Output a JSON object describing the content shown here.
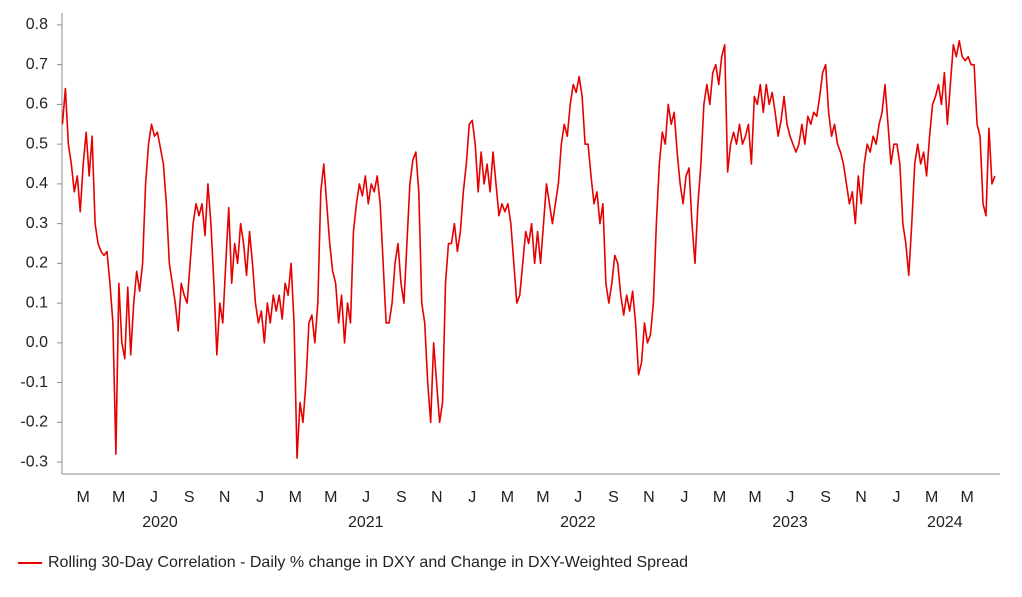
{
  "chart_data": {
    "type": "line",
    "x": [
      2020.11,
      2020.124,
      2020.138,
      2020.152,
      2020.166,
      2020.18,
      2020.194,
      2020.208,
      2020.222,
      2020.236,
      2020.25,
      2020.264,
      2020.278,
      2020.292,
      2020.306,
      2020.32,
      2020.334,
      2020.348,
      2020.362,
      2020.376,
      2020.39,
      2020.404,
      2020.418,
      2020.432,
      2020.446,
      2020.46,
      2020.474,
      2020.488,
      2020.502,
      2020.516,
      2020.53,
      2020.544,
      2020.558,
      2020.572,
      2020.586,
      2020.6,
      2020.614,
      2020.628,
      2020.642,
      2020.656,
      2020.67,
      2020.684,
      2020.698,
      2020.712,
      2020.726,
      2020.74,
      2020.754,
      2020.768,
      2020.782,
      2020.796,
      2020.81,
      2020.824,
      2020.838,
      2020.852,
      2020.866,
      2020.88,
      2020.894,
      2020.908,
      2020.922,
      2020.936,
      2020.95,
      2020.964,
      2020.978,
      2020.992,
      2021.006,
      2021.02,
      2021.034,
      2021.048,
      2021.062,
      2021.076,
      2021.09,
      2021.104,
      2021.118,
      2021.132,
      2021.146,
      2021.16,
      2021.174,
      2021.188,
      2021.202,
      2021.216,
      2021.23,
      2021.244,
      2021.258,
      2021.272,
      2021.286,
      2021.3,
      2021.314,
      2021.328,
      2021.342,
      2021.356,
      2021.37,
      2021.384,
      2021.398,
      2021.412,
      2021.426,
      2021.44,
      2021.454,
      2021.468,
      2021.482,
      2021.496,
      2021.51,
      2021.524,
      2021.538,
      2021.552,
      2021.566,
      2021.58,
      2021.594,
      2021.608,
      2021.622,
      2021.636,
      2021.65,
      2021.664,
      2021.678,
      2021.692,
      2021.706,
      2021.72,
      2021.734,
      2021.748,
      2021.762,
      2021.776,
      2021.79,
      2021.804,
      2021.818,
      2021.832,
      2021.846,
      2021.86,
      2021.874,
      2021.888,
      2021.902,
      2021.916,
      2021.93,
      2021.944,
      2021.958,
      2021.972,
      2021.986,
      2022,
      2022.014,
      2022.028,
      2022.042,
      2022.056,
      2022.07,
      2022.084,
      2022.098,
      2022.112,
      2022.126,
      2022.14,
      2022.154,
      2022.168,
      2022.182,
      2022.196,
      2022.21,
      2022.224,
      2022.238,
      2022.252,
      2022.266,
      2022.28,
      2022.294,
      2022.308,
      2022.322,
      2022.336,
      2022.35,
      2022.364,
      2022.378,
      2022.392,
      2022.406,
      2022.42,
      2022.434,
      2022.448,
      2022.462,
      2022.476,
      2022.49,
      2022.504,
      2022.518,
      2022.532,
      2022.546,
      2022.56,
      2022.574,
      2022.588,
      2022.602,
      2022.616,
      2022.63,
      2022.644,
      2022.658,
      2022.672,
      2022.686,
      2022.7,
      2022.714,
      2022.728,
      2022.742,
      2022.756,
      2022.77,
      2022.784,
      2022.798,
      2022.812,
      2022.826,
      2022.84,
      2022.854,
      2022.868,
      2022.882,
      2022.896,
      2022.91,
      2022.924,
      2022.938,
      2022.952,
      2022.966,
      2022.98,
      2022.994,
      2023.008,
      2023.022,
      2023.036,
      2023.05,
      2023.064,
      2023.078,
      2023.092,
      2023.106,
      2023.12,
      2023.134,
      2023.148,
      2023.162,
      2023.176,
      2023.19,
      2023.204,
      2023.218,
      2023.232,
      2023.246,
      2023.26,
      2023.274,
      2023.288,
      2023.302,
      2023.316,
      2023.33,
      2023.344,
      2023.358,
      2023.372,
      2023.386,
      2023.4,
      2023.414,
      2023.428,
      2023.442,
      2023.456,
      2023.47,
      2023.484,
      2023.498,
      2023.512,
      2023.526,
      2023.54,
      2023.554,
      2023.568,
      2023.582,
      2023.596,
      2023.61,
      2023.624,
      2023.638,
      2023.652,
      2023.666,
      2023.68,
      2023.694,
      2023.708,
      2023.722,
      2023.736,
      2023.75,
      2023.764,
      2023.778,
      2023.792,
      2023.806,
      2023.82,
      2023.834,
      2023.848,
      2023.862,
      2023.876,
      2023.89,
      2023.904,
      2023.918,
      2023.932,
      2023.946,
      2023.96,
      2023.974,
      2023.988,
      2024.002,
      2024.016,
      2024.03,
      2024.044,
      2024.058,
      2024.072,
      2024.086,
      2024.1,
      2024.114,
      2024.128,
      2024.142,
      2024.156,
      2024.17,
      2024.184,
      2024.198,
      2024.212,
      2024.226,
      2024.24,
      2024.254,
      2024.268,
      2024.282,
      2024.296,
      2024.31,
      2024.324,
      2024.338,
      2024.352,
      2024.366,
      2024.38,
      2024.394,
      2024.408,
      2024.422,
      2024.436,
      2024.45,
      2024.464,
      2024.478,
      2024.492,
      2024.506
    ],
    "series": [
      {
        "name": "Rolling 30-Day Correlation - Daily % change in DXY and Change in DXY-Weighted Spread",
        "color": "#e60000",
        "values": [
          0.55,
          0.64,
          0.5,
          0.45,
          0.38,
          0.42,
          0.33,
          0.45,
          0.53,
          0.42,
          0.52,
          0.3,
          0.25,
          0.23,
          0.22,
          0.23,
          0.15,
          0.05,
          -0.28,
          0.15,
          0.0,
          -0.04,
          0.14,
          -0.03,
          0.1,
          0.18,
          0.13,
          0.2,
          0.4,
          0.5,
          0.55,
          0.52,
          0.53,
          0.49,
          0.45,
          0.35,
          0.2,
          0.15,
          0.1,
          0.03,
          0.15,
          0.12,
          0.1,
          0.2,
          0.3,
          0.35,
          0.32,
          0.35,
          0.27,
          0.4,
          0.3,
          0.15,
          -0.03,
          0.1,
          0.05,
          0.2,
          0.34,
          0.15,
          0.25,
          0.2,
          0.3,
          0.25,
          0.17,
          0.28,
          0.2,
          0.1,
          0.05,
          0.08,
          0.0,
          0.1,
          0.05,
          0.12,
          0.08,
          0.12,
          0.06,
          0.15,
          0.12,
          0.2,
          0.05,
          -0.29,
          -0.15,
          -0.2,
          -0.1,
          0.05,
          0.07,
          0.0,
          0.1,
          0.38,
          0.45,
          0.35,
          0.25,
          0.18,
          0.15,
          0.05,
          0.12,
          0.0,
          0.1,
          0.05,
          0.28,
          0.35,
          0.4,
          0.37,
          0.42,
          0.35,
          0.4,
          0.38,
          0.42,
          0.35,
          0.2,
          0.05,
          0.05,
          0.1,
          0.2,
          0.25,
          0.15,
          0.1,
          0.25,
          0.4,
          0.46,
          0.48,
          0.38,
          0.1,
          0.05,
          -0.1,
          -0.2,
          0.0,
          -0.1,
          -0.2,
          -0.15,
          0.15,
          0.25,
          0.25,
          0.3,
          0.23,
          0.28,
          0.38,
          0.45,
          0.55,
          0.56,
          0.5,
          0.38,
          0.48,
          0.4,
          0.45,
          0.38,
          0.48,
          0.4,
          0.32,
          0.35,
          0.33,
          0.35,
          0.3,
          0.2,
          0.1,
          0.12,
          0.2,
          0.28,
          0.25,
          0.3,
          0.2,
          0.28,
          0.2,
          0.3,
          0.4,
          0.35,
          0.3,
          0.35,
          0.4,
          0.5,
          0.55,
          0.52,
          0.6,
          0.65,
          0.63,
          0.67,
          0.62,
          0.5,
          0.5,
          0.42,
          0.35,
          0.38,
          0.3,
          0.35,
          0.15,
          0.1,
          0.15,
          0.22,
          0.2,
          0.12,
          0.07,
          0.12,
          0.08,
          0.13,
          0.05,
          -0.08,
          -0.05,
          0.05,
          0.0,
          0.02,
          0.1,
          0.3,
          0.45,
          0.53,
          0.5,
          0.6,
          0.55,
          0.58,
          0.48,
          0.4,
          0.35,
          0.42,
          0.44,
          0.3,
          0.2,
          0.35,
          0.45,
          0.6,
          0.65,
          0.6,
          0.68,
          0.7,
          0.65,
          0.72,
          0.75,
          0.43,
          0.5,
          0.53,
          0.5,
          0.55,
          0.5,
          0.52,
          0.55,
          0.45,
          0.62,
          0.6,
          0.65,
          0.58,
          0.65,
          0.6,
          0.63,
          0.58,
          0.52,
          0.56,
          0.62,
          0.55,
          0.52,
          0.5,
          0.48,
          0.5,
          0.55,
          0.5,
          0.57,
          0.55,
          0.58,
          0.57,
          0.62,
          0.68,
          0.7,
          0.58,
          0.52,
          0.55,
          0.5,
          0.48,
          0.45,
          0.4,
          0.35,
          0.38,
          0.3,
          0.42,
          0.35,
          0.45,
          0.5,
          0.48,
          0.52,
          0.5,
          0.55,
          0.58,
          0.65,
          0.55,
          0.45,
          0.5,
          0.5,
          0.45,
          0.3,
          0.25,
          0.17,
          0.3,
          0.45,
          0.5,
          0.45,
          0.48,
          0.42,
          0.52,
          0.6,
          0.62,
          0.65,
          0.6,
          0.68,
          0.55,
          0.65,
          0.75,
          0.72,
          0.76,
          0.72,
          0.71,
          0.72,
          0.7,
          0.7,
          0.55,
          0.52,
          0.35,
          0.32,
          0.54,
          0.4,
          0.42
        ]
      }
    ],
    "xlim": [
      2020.108,
      2024.53
    ],
    "xticks": [
      {
        "value": 2020.208,
        "label": "M"
      },
      {
        "value": 2020.375,
        "label": "M"
      },
      {
        "value": 2020.542,
        "label": "J"
      },
      {
        "value": 2020.708,
        "label": "S"
      },
      {
        "value": 2020.875,
        "label": "N"
      },
      {
        "value": 2021.042,
        "label": "J"
      },
      {
        "value": 2021.208,
        "label": "M"
      },
      {
        "value": 2021.375,
        "label": "M"
      },
      {
        "value": 2021.542,
        "label": "J"
      },
      {
        "value": 2021.708,
        "label": "S"
      },
      {
        "value": 2021.875,
        "label": "N"
      },
      {
        "value": 2022.042,
        "label": "J"
      },
      {
        "value": 2022.208,
        "label": "M"
      },
      {
        "value": 2022.375,
        "label": "M"
      },
      {
        "value": 2022.542,
        "label": "J"
      },
      {
        "value": 2022.708,
        "label": "S"
      },
      {
        "value": 2022.875,
        "label": "N"
      },
      {
        "value": 2023.042,
        "label": "J"
      },
      {
        "value": 2023.208,
        "label": "M"
      },
      {
        "value": 2023.375,
        "label": "M"
      },
      {
        "value": 2023.542,
        "label": "J"
      },
      {
        "value": 2023.708,
        "label": "S"
      },
      {
        "value": 2023.875,
        "label": "N"
      },
      {
        "value": 2024.042,
        "label": "J"
      },
      {
        "value": 2024.208,
        "label": "M"
      },
      {
        "value": 2024.375,
        "label": "M"
      }
    ],
    "year_labels": [
      {
        "value": 2020.57,
        "label": "2020"
      },
      {
        "value": 2021.54,
        "label": "2021"
      },
      {
        "value": 2022.54,
        "label": "2022"
      },
      {
        "value": 2023.54,
        "label": "2023"
      },
      {
        "value": 2024.27,
        "label": "2024"
      }
    ],
    "ylim": [
      -0.33,
      0.83
    ],
    "yticks": [
      -0.3,
      -0.2,
      -0.1,
      {
        "value": 0,
        "label": "0.0"
      },
      0.1,
      0.2,
      0.3,
      0.4,
      0.5,
      0.6,
      0.7,
      0.8
    ],
    "grid": false,
    "legend": "bottom-left"
  }
}
